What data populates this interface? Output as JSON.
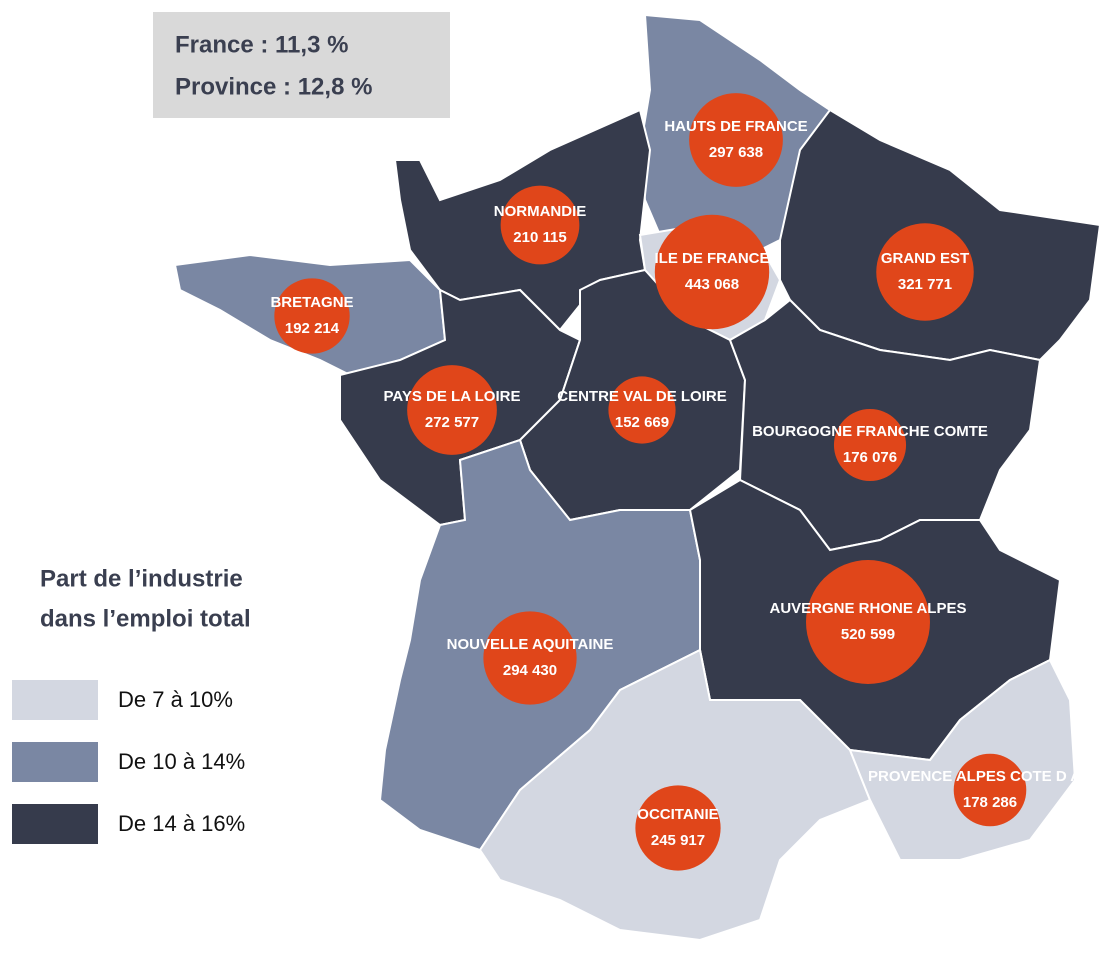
{
  "info_box": {
    "lines": [
      "France : 11,3 %",
      "Province : 12,8 %"
    ]
  },
  "legend": {
    "title_lines": [
      "Part de l’industrie",
      "dans l’emploi total"
    ],
    "items": [
      {
        "label": "De 7 à 10%",
        "color": "#d3d7e1"
      },
      {
        "label": "De 10 à 14%",
        "color": "#7a87a3"
      },
      {
        "label": "De 14 à 16%",
        "color": "#363b4c"
      }
    ]
  },
  "bubble_color": "#e0461a",
  "regions": [
    {
      "name": "HAUTS DE FRANCE",
      "value": 297638,
      "value_label": "297 638",
      "color": "#7a87a3"
    },
    {
      "name": "NORMANDIE",
      "value": 210115,
      "value_label": "210 115",
      "color": "#363b4c"
    },
    {
      "name": "ILE DE FRANCE",
      "value": 443068,
      "value_label": "443 068",
      "color": "#d3d7e1"
    },
    {
      "name": "GRAND EST",
      "value": 321771,
      "value_label": "321 771",
      "color": "#363b4c"
    },
    {
      "name": "BRETAGNE",
      "value": 192214,
      "value_label": "192 214",
      "color": "#7a87a3"
    },
    {
      "name": "PAYS DE LA LOIRE",
      "value": 272577,
      "value_label": "272 577",
      "color": "#363b4c"
    },
    {
      "name": "CENTRE VAL DE LOIRE",
      "value": 152669,
      "value_label": "152 669",
      "color": "#363b4c"
    },
    {
      "name": "BOURGOGNE FRANCHE COMTE",
      "value": 176076,
      "value_label": "176 076",
      "color": "#363b4c"
    },
    {
      "name": "NOUVELLE AQUITAINE",
      "value": 294430,
      "value_label": "294 430",
      "color": "#7a87a3"
    },
    {
      "name": "AUVERGNE RHONE ALPES",
      "value": 520599,
      "value_label": "520 599",
      "color": "#363b4c"
    },
    {
      "name": "OCCITANIE",
      "value": 245917,
      "value_label": "245 917",
      "color": "#d3d7e1"
    },
    {
      "name": "PROVENCE ALPES COTE D AZUR",
      "value": 178286,
      "value_label": "178 286",
      "color": "#d3d7e1"
    }
  ]
}
